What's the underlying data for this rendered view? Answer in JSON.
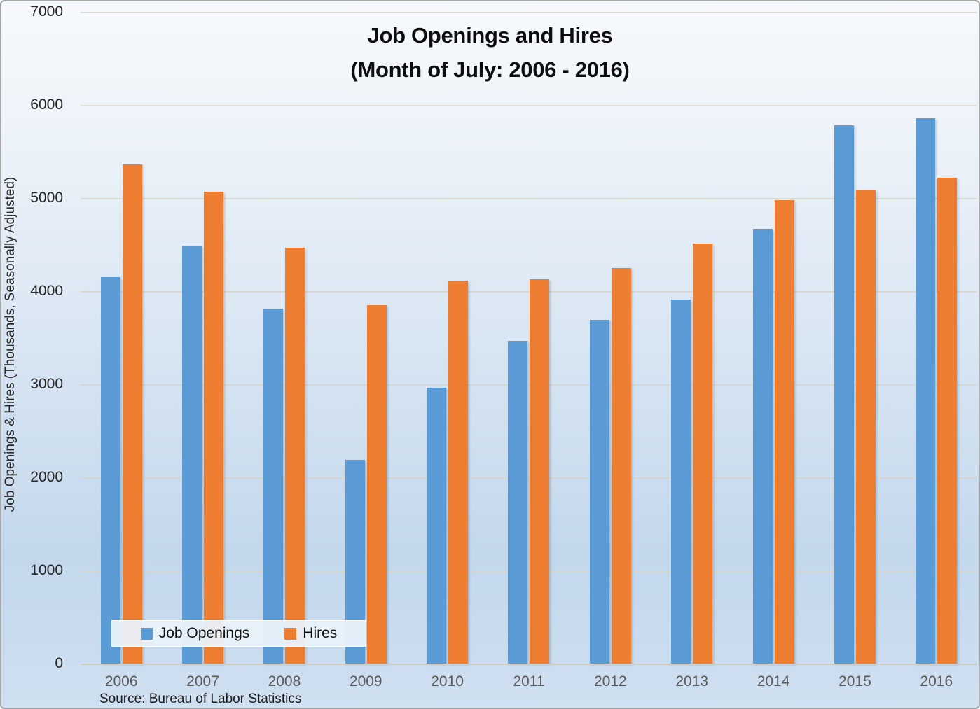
{
  "title": {
    "line1": "Job Openings and Hires",
    "line2": "(Month of July: 2006 - 2016)"
  },
  "source": "Source: Bureau of Labor Statistics",
  "chart_data": {
    "type": "bar",
    "title": "Job Openings and Hires (Month of July: 2006 - 2016)",
    "categories": [
      "2006",
      "2007",
      "2008",
      "2009",
      "2010",
      "2011",
      "2012",
      "2013",
      "2014",
      "2015",
      "2016"
    ],
    "series": [
      {
        "name": "Job Openings",
        "color": "#5B9BD5",
        "values": [
          4150,
          4490,
          3810,
          2190,
          2960,
          3470,
          3690,
          3910,
          4670,
          5780,
          5860
        ]
      },
      {
        "name": "Hires",
        "color": "#ED7D31",
        "values": [
          5360,
          5070,
          4470,
          3850,
          4110,
          4130,
          4250,
          4510,
          4980,
          5080,
          5220
        ]
      }
    ],
    "xlabel": "",
    "ylabel": "Job Openings & Hires (Thousands, Seasonally Adjusted)",
    "ylim": [
      0,
      7000
    ],
    "yticks": [
      0,
      1000,
      2000,
      3000,
      4000,
      5000,
      6000,
      7000
    ],
    "grid": true,
    "legend_position": "bottom-left-overlay"
  },
  "legend": {
    "items": [
      {
        "label": "Job Openings",
        "color": "#5B9BD5"
      },
      {
        "label": "Hires",
        "color": "#ED7D31"
      }
    ]
  },
  "colors": {
    "job_openings": "#5B9BD5",
    "hires": "#ED7D31",
    "gridline": "#D6D3CA",
    "tick_label": "#262626",
    "x_label": "#595959"
  }
}
